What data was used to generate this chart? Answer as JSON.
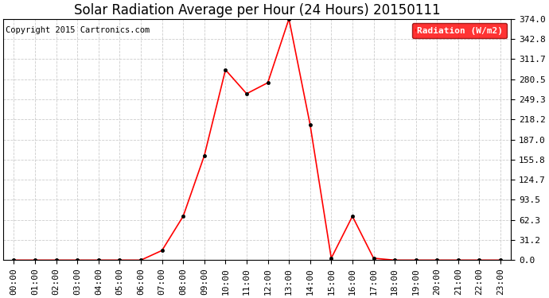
{
  "title": "Solar Radiation Average per Hour (24 Hours) 20150111",
  "copyright_text": "Copyright 2015 Cartronics.com",
  "legend_label": "Radiation (W/m2)",
  "hours": [
    0,
    1,
    2,
    3,
    4,
    5,
    6,
    7,
    8,
    9,
    10,
    11,
    12,
    13,
    14,
    15,
    16,
    17,
    18,
    19,
    20,
    21,
    22,
    23
  ],
  "values": [
    0.0,
    0.0,
    0.0,
    0.0,
    0.0,
    0.0,
    0.0,
    15.0,
    68.0,
    162.0,
    295.0,
    258.0,
    275.0,
    374.0,
    210.0,
    3.0,
    68.0,
    3.0,
    0.0,
    0.0,
    0.0,
    0.0,
    0.0,
    0.0
  ],
  "yticks": [
    0.0,
    31.2,
    62.3,
    93.5,
    124.7,
    155.8,
    187.0,
    218.2,
    249.3,
    280.5,
    311.7,
    342.8,
    374.0
  ],
  "ylim": [
    0.0,
    374.0
  ],
  "line_color": "red",
  "marker_color": "black",
  "grid_color": "#cccccc",
  "bg_color": "#ffffff",
  "plot_bg_color": "#ffffff",
  "legend_bg": "red",
  "legend_text_color": "white",
  "title_fontsize": 12,
  "copyright_fontsize": 7.5,
  "tick_fontsize": 8,
  "legend_fontsize": 8
}
